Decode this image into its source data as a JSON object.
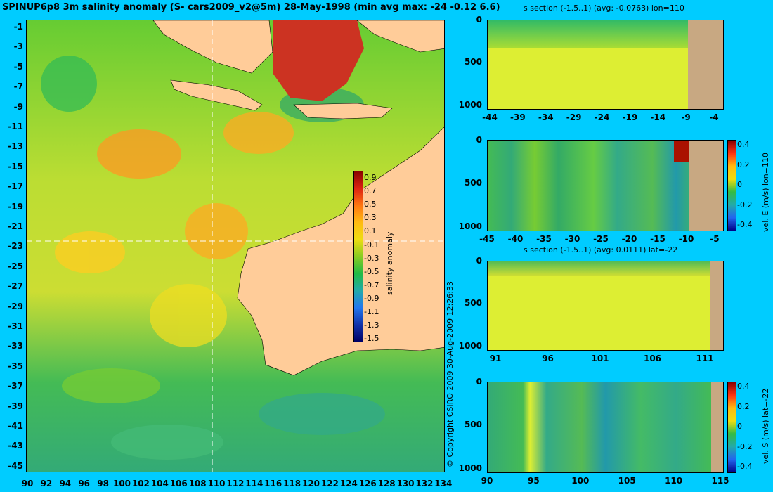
{
  "map": {
    "title": "SPINUP6p8 3m salinity anomaly (S- cars2009_v2@5m) 28-May-1998 (min avg max: -24 -0.12 6.6)",
    "lat_labels": [
      "-1",
      "-3",
      "-5",
      "-7",
      "-9",
      "-11",
      "-13",
      "-15",
      "-17",
      "-19",
      "-21",
      "-23",
      "-25",
      "-27",
      "-29",
      "-31",
      "-33",
      "-35",
      "-37",
      "-39",
      "-41",
      "-43",
      "-45"
    ],
    "lon_labels": [
      "90",
      "92",
      "94",
      "96",
      "98",
      "100",
      "102",
      "104",
      "106",
      "108",
      "110",
      "112",
      "114",
      "116",
      "118",
      "120",
      "122",
      "124",
      "126",
      "128",
      "130",
      "132",
      "134"
    ],
    "colorbar": {
      "label": "salinity anomaly",
      "ticks": [
        "0.9",
        "0.7",
        "0.5",
        "0.3",
        "0.1",
        "-0.1",
        "-0.3",
        "-0.5",
        "-0.7",
        "-0.9",
        "-1.1",
        "-1.3",
        "-1.5"
      ]
    },
    "crosshair": {
      "lon": 110,
      "lat": -22
    },
    "copyright": "© Copyright CSIRO 2009   30-Aug-2009 12:26:33"
  },
  "panels": [
    {
      "title": "s section (-1.5..1) (avg: -0.0763) lon=110",
      "y_labels": [
        "0",
        "500",
        "1000"
      ],
      "x_labels": [
        "-44",
        "-39",
        "-34",
        "-29",
        "-24",
        "-19",
        "-14",
        "-9",
        "-4"
      ],
      "colorbar": null
    },
    {
      "title": "",
      "y_labels": [
        "0",
        "500",
        "1000"
      ],
      "x_labels": [
        "-45",
        "-40",
        "-35",
        "-30",
        "-25",
        "-20",
        "-15",
        "-10",
        "-5"
      ],
      "colorbar": {
        "label": "vel. E (m/s) lon=110",
        "ticks": [
          "0.4",
          "0.2",
          "0",
          "-0.2",
          "-0.4"
        ]
      }
    },
    {
      "title": "s section (-1.5..1) (avg: 0.0111) lat=-22",
      "y_labels": [
        "0",
        "500",
        "1000"
      ],
      "x_labels": [
        "91",
        "96",
        "101",
        "106",
        "111"
      ],
      "colorbar": null
    },
    {
      "title": "",
      "y_labels": [
        "0",
        "500",
        "1000"
      ],
      "x_labels": [
        "90",
        "95",
        "100",
        "105",
        "110",
        "115"
      ],
      "colorbar": {
        "label": "vel. S (m/s) lat=-22",
        "ticks": [
          "0.4",
          "0.2",
          "0",
          "-0.2",
          "-0.4"
        ]
      }
    }
  ],
  "colors": {
    "background": "#00ccff",
    "land": "#ffcc99",
    "section_land": "#c8a882",
    "deep_ocean": "#33bb66",
    "sections_field": "#ddee33"
  }
}
